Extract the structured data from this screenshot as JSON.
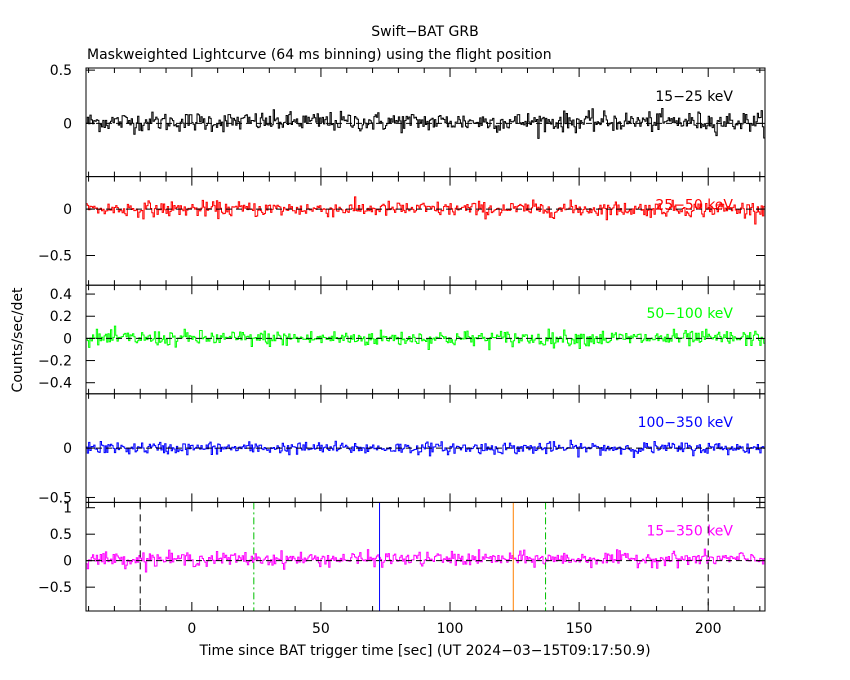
{
  "chart_data": {
    "type": "line",
    "title": "Swift−BAT GRB",
    "subtitle": "Maskweighted Lightcurve (64 ms binning) using the flight position",
    "xlabel": "Time since BAT trigger time [sec] (UT 2024−03−15T09:17:50.9)",
    "ylabel": "Counts/sec/det",
    "xlim": [
      -41,
      222
    ],
    "x_ticks": [
      0,
      50,
      100,
      150,
      200
    ],
    "panels": [
      {
        "band": "15−25 keV",
        "color": "#000000",
        "ylim": [
          -0.5,
          0.52
        ],
        "y_ticks": [
          {
            "value": 0,
            "label": "0"
          },
          {
            "value": 0.5,
            "label": "0.5"
          }
        ],
        "mean": 0.015,
        "noise_sigma": 0.045
      },
      {
        "band": "25−50 keV",
        "color": "#ff0000",
        "ylim": [
          -0.82,
          0.35
        ],
        "y_ticks": [
          {
            "value": 0,
            "label": "0"
          },
          {
            "value": -0.5,
            "label": "−0.5"
          }
        ],
        "mean": 0.0,
        "noise_sigma": 0.04
      },
      {
        "band": "50−100 keV",
        "color": "#00ff00",
        "ylim": [
          -0.5,
          0.48
        ],
        "y_ticks": [
          {
            "value": 0.4,
            "label": "0.4"
          },
          {
            "value": 0.2,
            "label": "0.2"
          },
          {
            "value": 0,
            "label": "0"
          },
          {
            "value": -0.2,
            "label": "−0.2"
          },
          {
            "value": -0.4,
            "label": "−0.4"
          }
        ],
        "mean": 0.0,
        "noise_sigma": 0.035
      },
      {
        "band": "100−350 keV",
        "color": "#0000ff",
        "ylim": [
          -0.55,
          0.55
        ],
        "y_ticks": [
          {
            "value": 0,
            "label": "0"
          },
          {
            "value": -0.5,
            "label": "−0.5"
          }
        ],
        "mean": 0.0,
        "noise_sigma": 0.03
      },
      {
        "band": "15−350 keV",
        "color": "#ff00ff",
        "ylim": [
          -0.95,
          1.1
        ],
        "y_ticks": [
          {
            "value": 1,
            "label": "1"
          },
          {
            "value": 0.5,
            "label": "0.5"
          },
          {
            "value": 0,
            "label": "0"
          },
          {
            "value": -0.5,
            "label": "−0.5"
          }
        ],
        "mean": 0.03,
        "noise_sigma": 0.065
      }
    ],
    "markers": [
      {
        "x": -20,
        "color": "#000000",
        "style": "dashed"
      },
      {
        "x": 24,
        "color": "#00c000",
        "style": "dashdot"
      },
      {
        "x": 72.7,
        "color": "#0000ff",
        "style": "solid"
      },
      {
        "x": 124.5,
        "color": "#ff8000",
        "style": "solid"
      },
      {
        "x": 137,
        "color": "#00c000",
        "style": "dashdot"
      },
      {
        "x": 200,
        "color": "#000000",
        "style": "dashed"
      }
    ]
  }
}
